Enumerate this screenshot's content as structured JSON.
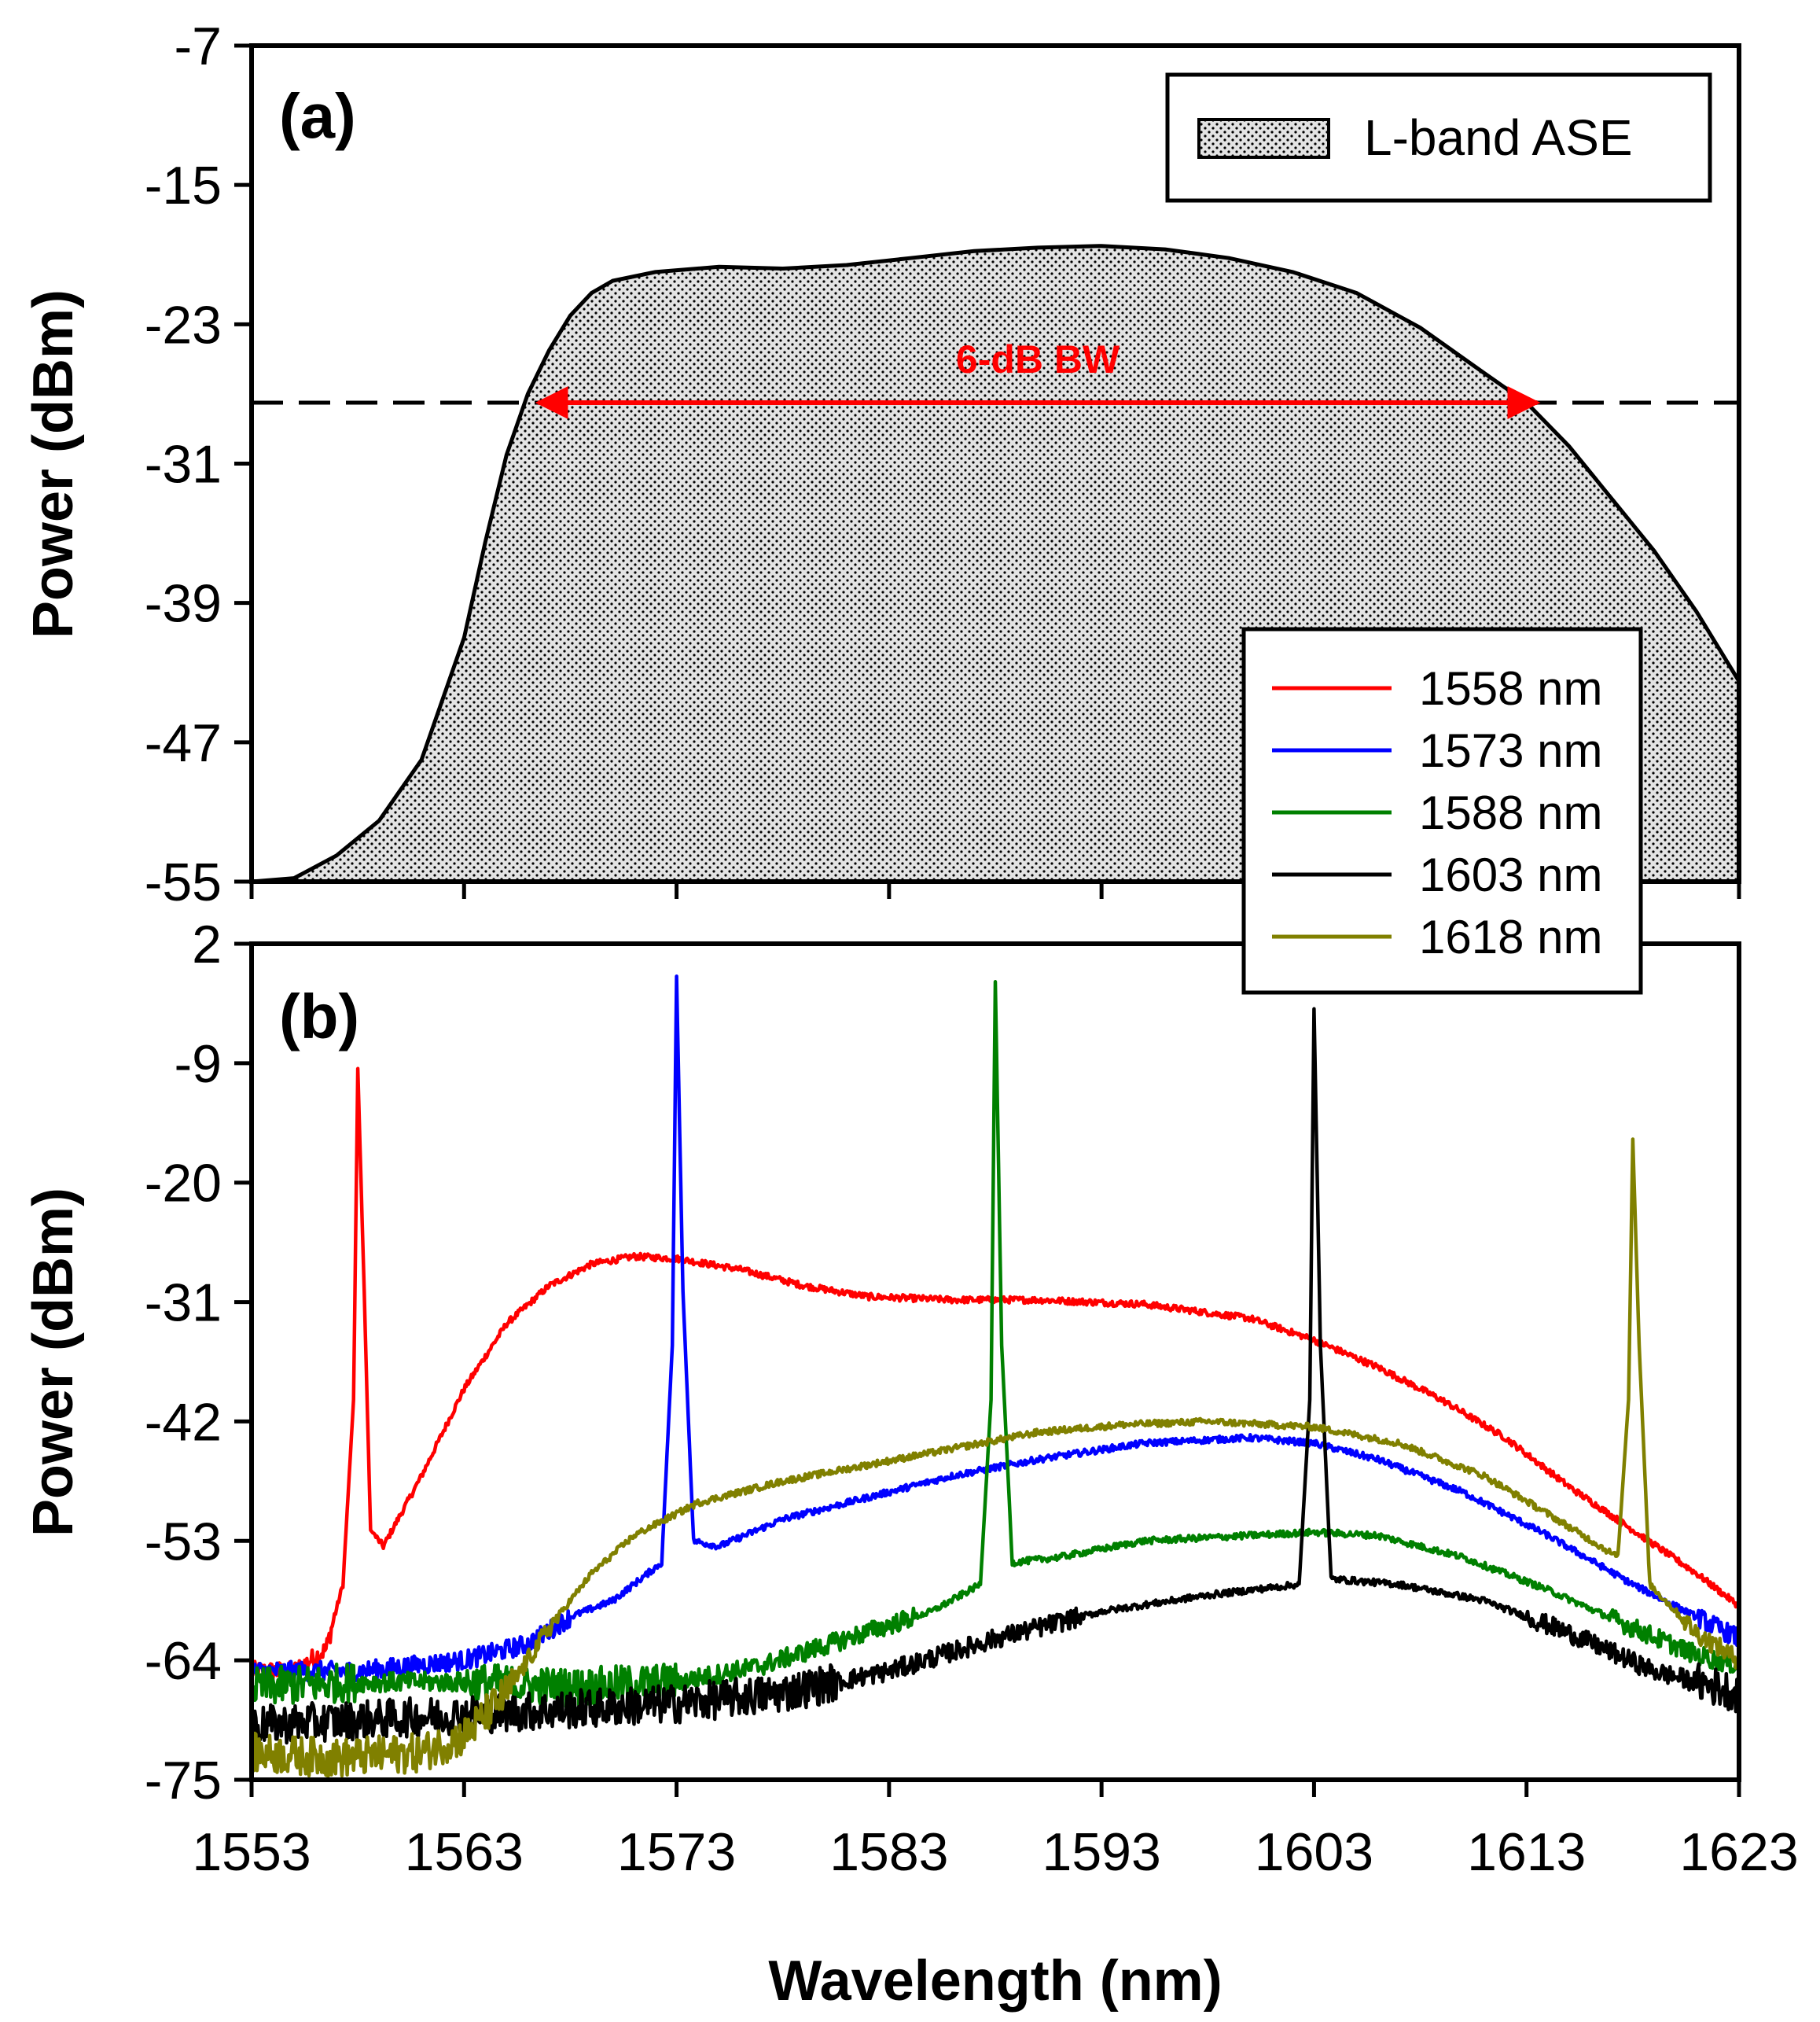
{
  "chart_data": [
    {
      "panel": "(a)",
      "type": "area",
      "xlabel": "",
      "ylabel": "Power (dBm)",
      "xlim": [
        1553,
        1623
      ],
      "ylim": [
        -55,
        -7
      ],
      "yticks": [
        "-7",
        "-15",
        "-23",
        "-31",
        "-39",
        "-47",
        "-55"
      ],
      "xticks": [
        1553,
        1563,
        1573,
        1583,
        1593,
        1603,
        1613,
        1623
      ],
      "legend": {
        "position": "top-right",
        "entries": [
          "L-band ASE"
        ]
      },
      "series": [
        {
          "name": "L-band ASE",
          "x": [
            1553,
            1555,
            1557,
            1559,
            1561,
            1563,
            1564,
            1565,
            1566,
            1567,
            1568,
            1569,
            1570,
            1572,
            1575,
            1578,
            1581,
            1584,
            1587,
            1590,
            1593,
            1596,
            1599,
            1602,
            1605,
            1608,
            1611,
            1613,
            1615,
            1617,
            1619,
            1621,
            1623
          ],
          "y": [
            -55,
            -54.8,
            -53.5,
            -51.5,
            -48,
            -41,
            -35.5,
            -30.5,
            -27,
            -24.5,
            -22.5,
            -21.2,
            -20.5,
            -20,
            -19.7,
            -19.8,
            -19.6,
            -19.2,
            -18.8,
            -18.6,
            -18.5,
            -18.7,
            -19.2,
            -20,
            -21.2,
            -23.2,
            -25.8,
            -27.5,
            -30,
            -33,
            -36,
            -39.5,
            -43.5
          ]
        }
      ],
      "reference_line": {
        "y": -27.5,
        "style": "dashed"
      },
      "annotation": {
        "text": "6-dB BW",
        "x_start": 1566.5,
        "x_end": 1613.5,
        "y": -27.5,
        "color": "#ff0000"
      }
    },
    {
      "panel": "(b)",
      "type": "line",
      "xlabel": "Wavelength (nm)",
      "ylabel": "Power (dBm)",
      "xlim": [
        1553,
        1623
      ],
      "ylim": [
        -75,
        2
      ],
      "yticks": [
        "2",
        "-9",
        "-20",
        "-31",
        "-42",
        "-53",
        "-64",
        "-75"
      ],
      "xticks": [
        "1553",
        "1563",
        "1573",
        "1583",
        "1593",
        "1603",
        "1613",
        "1623"
      ],
      "legend": {
        "position": "top-right",
        "entries": [
          "1558 nm",
          "1573 nm",
          "1588 nm",
          "1603 nm",
          "1618 nm"
        ]
      },
      "series": [
        {
          "name": "1558 nm",
          "color": "#ff0000",
          "peak": [
            1558,
            -9.5
          ],
          "x": [
            1553,
            1555,
            1556.5,
            1557.3,
            1557.8,
            1558,
            1558.3,
            1558.6,
            1559.2,
            1561,
            1563,
            1565,
            1567,
            1569,
            1571,
            1573,
            1576,
            1579,
            1582,
            1586,
            1590,
            1595,
            1600,
            1603,
            1606,
            1609,
            1612,
            1615,
            1618,
            1621,
            1623
          ],
          "y": [
            -65,
            -65,
            -63,
            -57,
            -40,
            -9.5,
            -30,
            -52,
            -53.5,
            -47,
            -39,
            -33,
            -29.5,
            -27.5,
            -26.8,
            -27,
            -28,
            -29.5,
            -30.5,
            -30.8,
            -30.8,
            -31.2,
            -32.5,
            -34.5,
            -37,
            -40,
            -43.5,
            -48,
            -52,
            -56,
            -59
          ]
        },
        {
          "name": "1573 nm",
          "color": "#0000ff",
          "peak": [
            1573,
            -1
          ],
          "x": [
            1553,
            1558,
            1563,
            1566,
            1568,
            1570,
            1572.3,
            1572.8,
            1573,
            1573.3,
            1573.8,
            1575,
            1578,
            1582,
            1586,
            1590,
            1595,
            1600,
            1603,
            1606,
            1610,
            1614,
            1618,
            1621,
            1623
          ],
          "y": [
            -65,
            -65,
            -64,
            -62.5,
            -60,
            -58.5,
            -55,
            -35,
            -1,
            -30,
            -53,
            -53.5,
            -51,
            -49,
            -47,
            -45.5,
            -44,
            -43.5,
            -44,
            -45.5,
            -48.5,
            -52.5,
            -57,
            -60,
            -62
          ]
        },
        {
          "name": "1588 nm",
          "color": "#008000",
          "peak": [
            1588,
            -1.5
          ],
          "x": [
            1553,
            1558,
            1563,
            1568,
            1573,
            1577,
            1581,
            1585,
            1587.3,
            1587.8,
            1588,
            1588.3,
            1588.8,
            1591,
            1595,
            1600,
            1603,
            1606,
            1610,
            1614,
            1618,
            1621,
            1623
          ],
          "y": [
            -66.5,
            -66,
            -66,
            -66.5,
            -66,
            -64.5,
            -62,
            -59.5,
            -57,
            -40,
            -1.5,
            -35,
            -55,
            -54.5,
            -53,
            -52.5,
            -52.2,
            -52.5,
            -54.5,
            -57.5,
            -61,
            -63.5,
            -64.5
          ]
        },
        {
          "name": "1603 nm",
          "color": "#000000",
          "peak": [
            1603,
            -4
          ],
          "x": [
            1553,
            1558,
            1563,
            1568,
            1573,
            1578,
            1583,
            1588,
            1593,
            1598,
            1602.3,
            1602.8,
            1603,
            1603.3,
            1603.8,
            1607,
            1611,
            1615,
            1619,
            1623
          ],
          "y": [
            -70,
            -69.5,
            -69,
            -68.5,
            -68,
            -67,
            -65,
            -62,
            -59.5,
            -58,
            -57,
            -40,
            -4,
            -35,
            -56.5,
            -57,
            -58.5,
            -61.5,
            -65,
            -67
          ]
        },
        {
          "name": "1618 nm",
          "color": "#808000",
          "peak": [
            1618,
            -16
          ],
          "x": [
            1553,
            1557,
            1561,
            1563,
            1565,
            1567,
            1569,
            1571,
            1574,
            1578,
            1582,
            1586,
            1590,
            1594,
            1598,
            1603,
            1607,
            1611,
            1614,
            1617.3,
            1617.8,
            1618,
            1618.3,
            1618.8,
            1621,
            1623
          ],
          "y": [
            -72.5,
            -73,
            -72.5,
            -71,
            -67,
            -61,
            -56,
            -52.5,
            -49.5,
            -47.5,
            -46,
            -44.5,
            -43,
            -42.3,
            -42,
            -42.5,
            -44,
            -47,
            -50.5,
            -54.5,
            -40,
            -16,
            -35,
            -57,
            -61.5,
            -64
          ]
        }
      ]
    }
  ]
}
